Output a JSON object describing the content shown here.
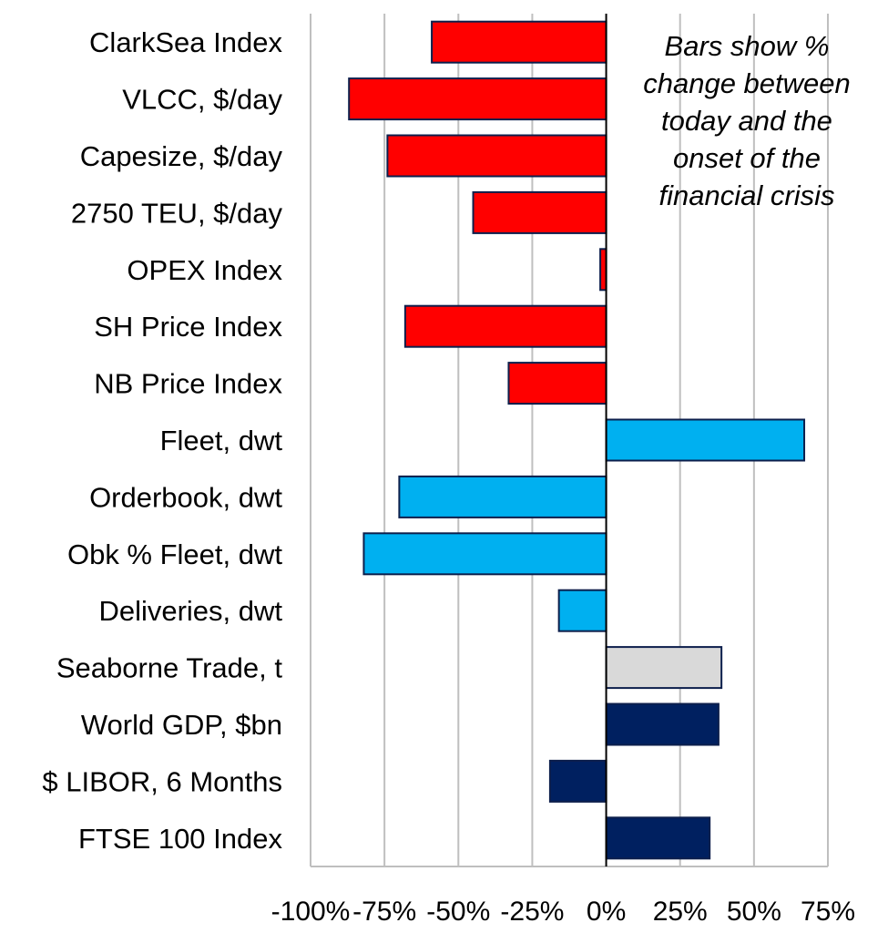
{
  "chart_data": {
    "type": "bar",
    "orientation": "horizontal",
    "categories": [
      "ClarkSea Index",
      "VLCC, $/day",
      "Capesize, $/day",
      "2750 TEU, $/day",
      "OPEX Index",
      "SH Price Index",
      "NB Price Index",
      "Fleet, dwt",
      "Orderbook, dwt",
      "Obk % Fleet, dwt",
      "Deliveries, dwt",
      "Seaborne Trade, t",
      "World GDP, $bn",
      "$ LIBOR, 6 Months",
      "FTSE 100 Index"
    ],
    "values": [
      -59,
      -87,
      -74,
      -45,
      -2,
      -68,
      -33,
      67,
      -70,
      -82,
      -16,
      39,
      38,
      -19,
      35
    ],
    "bar_colors": [
      "#ff0000",
      "#ff0000",
      "#ff0000",
      "#ff0000",
      "#ff0000",
      "#ff0000",
      "#ff0000",
      "#00b0f0",
      "#00b0f0",
      "#00b0f0",
      "#00b0f0",
      "#d9d9d9",
      "#002060",
      "#002060",
      "#002060"
    ],
    "xlim": [
      -100,
      75
    ],
    "x_ticks": [
      -100,
      -75,
      -50,
      -25,
      0,
      25,
      50,
      75
    ],
    "x_tick_labels": [
      "-100%",
      "-75%",
      "-50%",
      "-25%",
      "0%",
      "25%",
      "50%",
      "75%"
    ],
    "grid": "vertical",
    "annotation": "Bars show %\nchange between\ntoday and the\nonset of the\nfinancial crisis"
  }
}
